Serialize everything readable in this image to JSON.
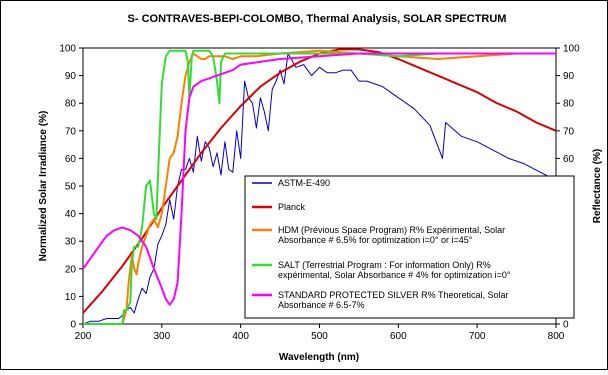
{
  "chart_data": {
    "type": "line",
    "title": "S- CONTRAVES-BEPI-COLOMBO, Thermal Analysis, SOLAR SPECTRUM",
    "xlabel": "Wavelength (nm)",
    "ylabel": "Normalized Solar Irradiance (%)",
    "ylabel_right": "Reflectance (%)",
    "xlim": [
      200,
      800
    ],
    "ylim": [
      0,
      100
    ],
    "xticks": [
      "200",
      "300",
      "400",
      "500",
      "600",
      "700",
      "800"
    ],
    "yticks": [
      "0",
      "10",
      "20",
      "30",
      "40",
      "50",
      "60",
      "70",
      "80",
      "90",
      "100"
    ],
    "grid": false,
    "legend_position": "bottom-right",
    "series": [
      {
        "name": "ASTM-E-490",
        "color": "#0000CC",
        "x": [
          200,
          210,
          220,
          230,
          240,
          245,
          250,
          255,
          260,
          265,
          270,
          275,
          280,
          285,
          290,
          295,
          300,
          305,
          310,
          315,
          320,
          325,
          330,
          335,
          340,
          345,
          350,
          355,
          360,
          365,
          370,
          375,
          380,
          385,
          390,
          395,
          400,
          405,
          410,
          415,
          420,
          425,
          430,
          435,
          440,
          445,
          450,
          455,
          460,
          470,
          480,
          490,
          500,
          510,
          520,
          530,
          540,
          550,
          560,
          570,
          580,
          590,
          600,
          620,
          640,
          656,
          660,
          680,
          700,
          720,
          740,
          760,
          780,
          800
        ],
        "y": [
          0,
          1,
          1,
          2,
          2,
          2,
          3,
          5,
          6,
          4,
          9,
          13,
          11,
          17,
          20,
          29,
          32,
          36,
          45,
          38,
          50,
          56,
          56,
          60,
          55,
          68,
          59,
          66,
          64,
          57,
          62,
          54,
          66,
          56,
          55,
          70,
          60,
          88,
          82,
          80,
          71,
          82,
          77,
          70,
          85,
          88,
          92,
          87,
          98,
          93,
          94,
          90,
          93,
          91,
          91,
          92,
          92,
          88,
          88,
          87,
          86,
          84,
          82,
          78,
          72,
          60,
          73,
          68,
          66,
          63,
          60,
          58,
          55,
          52
        ]
      },
      {
        "name": "Planck",
        "color": "#DD0000",
        "x": [
          200,
          225,
          250,
          275,
          300,
          325,
          350,
          375,
          400,
          425,
          450,
          475,
          500,
          525,
          550,
          575,
          600,
          625,
          650,
          675,
          700,
          725,
          750,
          775,
          800
        ],
        "y": [
          4,
          12,
          21,
          31,
          42,
          52,
          62,
          71,
          79,
          86,
          91,
          95,
          98,
          99.5,
          99.5,
          98.5,
          96,
          93,
          90,
          87,
          84,
          80,
          77,
          73,
          70
        ]
      },
      {
        "name": "HDM (Prévious Space Program) R% Expérimental, Solar Absorbance # 6.5% for optimization i=0° or i=45°",
        "color": "#FF8000",
        "x": [
          200,
          250,
          255,
          258,
          262,
          265,
          268,
          270,
          275,
          280,
          285,
          290,
          295,
          300,
          305,
          310,
          315,
          320,
          325,
          330,
          335,
          340,
          345,
          350,
          355,
          360,
          370,
          380,
          390,
          400,
          420,
          450,
          500,
          550,
          600,
          650,
          700,
          750,
          800
        ],
        "y": [
          0,
          0,
          5,
          15,
          25,
          20,
          18,
          22,
          28,
          32,
          36,
          38,
          35,
          40,
          50,
          60,
          62,
          68,
          80,
          90,
          95,
          98,
          97,
          96,
          96,
          97,
          97,
          97,
          96,
          97,
          97,
          98,
          99,
          98,
          97,
          96,
          97,
          98,
          98
        ]
      },
      {
        "name": "SALT (Terrestrial Program : For information Only) R% expérimental, Solar Absorbance # 4% for optimization i=0°",
        "color": "#33DD33",
        "x": [
          200,
          245,
          250,
          252,
          255,
          260,
          262,
          265,
          270,
          275,
          280,
          285,
          290,
          293,
          296,
          300,
          305,
          310,
          315,
          320,
          325,
          330,
          333,
          335,
          338,
          340,
          345,
          350,
          355,
          360,
          365,
          370,
          373,
          375,
          380,
          390,
          400,
          450,
          500,
          550,
          600,
          650,
          700,
          750,
          800
        ],
        "y": [
          0,
          0,
          0,
          5,
          5,
          8,
          22,
          28,
          28,
          35,
          50,
          52,
          40,
          38,
          60,
          87,
          97,
          99,
          99,
          99,
          99,
          99,
          95,
          82,
          97,
          99,
          99,
          99,
          99,
          99,
          97,
          88,
          80,
          95,
          98,
          98,
          98,
          98,
          98,
          98,
          97,
          98,
          98,
          98,
          98
        ]
      },
      {
        "name": "STANDARD PROTECTED SILVER R% Theoretical, Solar Absorbance # 6.5-7%",
        "color": "#FF00FF",
        "x": [
          200,
          210,
          220,
          230,
          240,
          250,
          260,
          270,
          280,
          290,
          300,
          305,
          310,
          315,
          320,
          325,
          330,
          335,
          340,
          345,
          350,
          360,
          370,
          380,
          390,
          400,
          450,
          500,
          550,
          600,
          650,
          700,
          750,
          800
        ],
        "y": [
          20,
          24,
          28,
          32,
          34,
          35,
          34,
          32,
          28,
          20,
          13,
          9,
          7,
          9,
          15,
          40,
          70,
          82,
          86,
          87,
          88,
          89,
          90,
          91,
          92,
          94,
          96,
          97,
          98,
          98,
          98,
          98,
          98,
          98
        ]
      }
    ]
  }
}
